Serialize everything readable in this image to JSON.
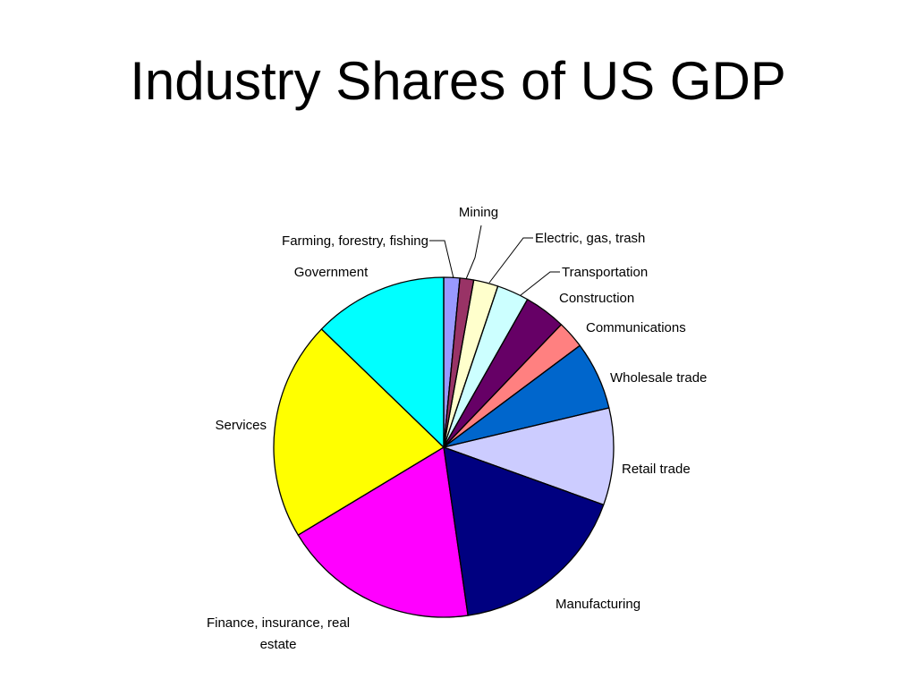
{
  "page": {
    "title": "Industry Shares of US GDP"
  },
  "chart_data": {
    "type": "pie",
    "title": "Industry Shares of US GDP",
    "unit": "share",
    "start": "12 o'clock",
    "direction": "clockwise",
    "slices": [
      {
        "label": "Farming, forestry, fishing",
        "value": 1.5,
        "color": "#9999ff"
      },
      {
        "label": "Mining",
        "value": 1.3,
        "color": "#993366"
      },
      {
        "label": "Electric, gas, trash",
        "value": 2.3,
        "color": "#ffffcc"
      },
      {
        "label": "Transportation",
        "value": 3.0,
        "color": "#ccffff"
      },
      {
        "label": "Construction",
        "value": 3.9,
        "color": "#660066"
      },
      {
        "label": "Communications",
        "value": 2.6,
        "color": "#ff8080"
      },
      {
        "label": "Wholesale trade",
        "value": 6.4,
        "color": "#0066cc"
      },
      {
        "label": "Retail trade",
        "value": 9.1,
        "color": "#ccccff"
      },
      {
        "label": "Manufacturing",
        "value": 17.0,
        "color": "#000080"
      },
      {
        "label": "Finance, insurance, real estate",
        "value": 18.4,
        "color": "#ff00ff"
      },
      {
        "label": "Services",
        "value": 20.6,
        "color": "#ffff00"
      },
      {
        "label": "Government",
        "value": 12.6,
        "color": "#00ffff"
      }
    ]
  }
}
